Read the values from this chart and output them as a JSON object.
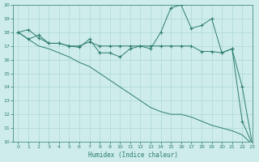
{
  "xlabel": "Humidex (Indice chaleur)",
  "x": [
    0,
    1,
    2,
    3,
    4,
    5,
    6,
    7,
    8,
    9,
    10,
    11,
    12,
    13,
    14,
    15,
    16,
    17,
    18,
    19,
    20,
    21,
    22,
    23
  ],
  "series": [
    [
      18.0,
      18.2,
      17.6,
      17.2,
      17.2,
      17.0,
      16.9,
      17.5,
      16.5,
      16.5,
      16.2,
      16.8,
      17.0,
      16.8,
      18.0,
      19.8,
      20.0,
      18.3,
      18.5,
      19.0,
      16.5,
      16.8,
      14.0,
      9.8
    ],
    [
      18.0,
      17.5,
      17.8,
      17.2,
      17.2,
      17.0,
      17.0,
      17.3,
      17.0,
      17.0,
      17.0,
      17.0,
      17.0,
      17.0,
      17.0,
      17.0,
      17.0,
      17.0,
      16.6,
      16.6,
      16.5,
      16.8,
      11.5,
      9.8
    ],
    [
      18.0,
      17.5,
      17.0,
      16.8,
      16.5,
      16.2,
      15.8,
      15.5,
      15.0,
      14.5,
      14.0,
      13.5,
      13.0,
      12.5,
      12.2,
      12.0,
      12.0,
      11.8,
      11.5,
      11.2,
      11.0,
      10.8,
      10.5,
      9.8
    ]
  ],
  "markers": [
    "+",
    "+",
    null
  ],
  "bg_color": "#cdecea",
  "grid_color": "#aed8d5",
  "line_color": "#2e7d6e",
  "ylim": [
    10,
    20
  ],
  "xlim": [
    -0.5,
    23
  ],
  "yticks": [
    10,
    11,
    12,
    13,
    14,
    15,
    16,
    17,
    18,
    19,
    20
  ],
  "xticks": [
    0,
    1,
    2,
    3,
    4,
    5,
    6,
    7,
    8,
    9,
    10,
    11,
    12,
    13,
    14,
    15,
    16,
    17,
    18,
    19,
    20,
    21,
    22,
    23
  ]
}
